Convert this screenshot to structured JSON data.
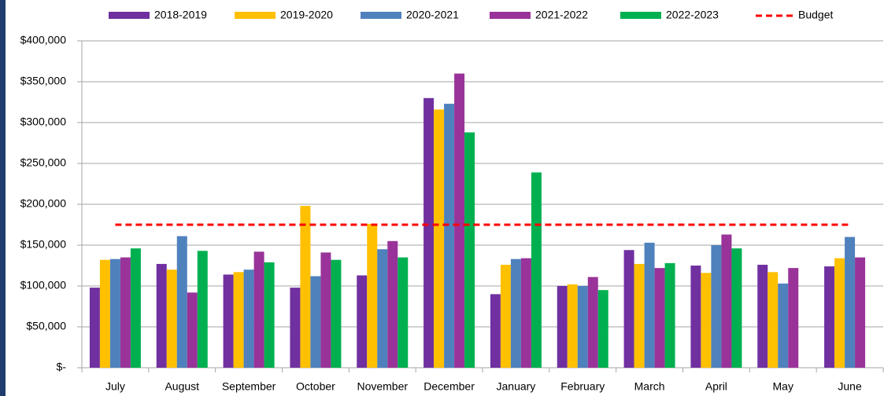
{
  "chart_data": {
    "type": "bar",
    "categories": [
      "July",
      "August",
      "September",
      "October",
      "November",
      "December",
      "January",
      "February",
      "March",
      "April",
      "May",
      "June"
    ],
    "series": [
      {
        "name": "2018-2019",
        "color": "#7030a0",
        "values": [
          98000,
          127000,
          114000,
          98000,
          113000,
          330000,
          90000,
          100000,
          144000,
          125000,
          126000,
          124000
        ]
      },
      {
        "name": "2019-2020",
        "color": "#ffc000",
        "values": [
          132000,
          120000,
          117000,
          198000,
          176000,
          316000,
          126000,
          102000,
          127000,
          116000,
          117000,
          134000
        ]
      },
      {
        "name": "2020-2021",
        "color": "#4f81bd",
        "values": [
          133000,
          161000,
          120000,
          112000,
          145000,
          323000,
          133000,
          100000,
          153000,
          150000,
          103000,
          160000
        ]
      },
      {
        "name": "2021-2022",
        "color": "#993399",
        "values": [
          135000,
          92000,
          142000,
          141000,
          155000,
          360000,
          134000,
          111000,
          122000,
          163000,
          122000,
          135000
        ]
      },
      {
        "name": "2022-2023",
        "color": "#00b050",
        "values": [
          146000,
          143000,
          129000,
          132000,
          135000,
          288000,
          239000,
          95000,
          128000,
          146000,
          null,
          null
        ]
      }
    ],
    "budget": {
      "name": "Budget",
      "color": "#ff0000",
      "value": 175000
    },
    "ylim": [
      0,
      400000
    ],
    "yticks": [
      {
        "value": 0,
        "label": "$-"
      },
      {
        "value": 50000,
        "label": "$50,000"
      },
      {
        "value": 100000,
        "label": "$100,000"
      },
      {
        "value": 150000,
        "label": "$150,000"
      },
      {
        "value": 200000,
        "label": "$200,000"
      },
      {
        "value": 250000,
        "label": "$250,000"
      },
      {
        "value": 300000,
        "label": "$300,000"
      },
      {
        "value": 350000,
        "label": "$350,000"
      },
      {
        "value": 400000,
        "label": "$400,000"
      }
    ],
    "grid": true
  }
}
